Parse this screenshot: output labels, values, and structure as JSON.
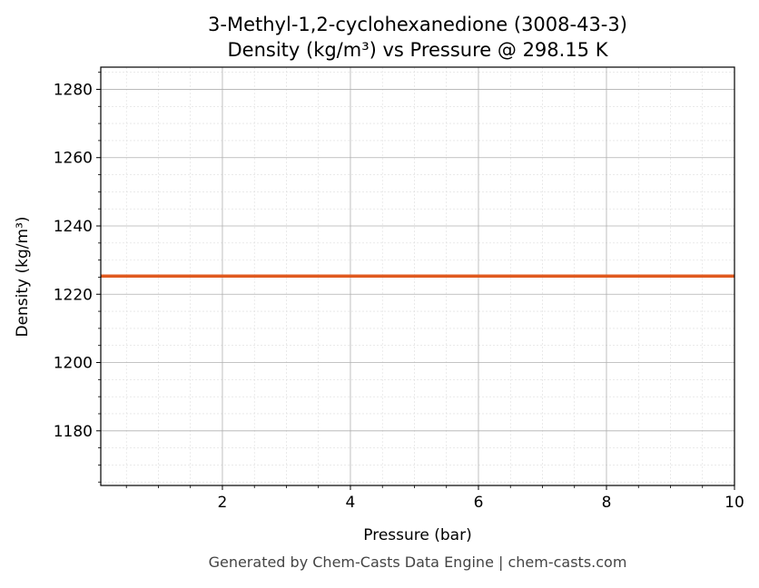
{
  "chart_data": {
    "type": "line",
    "title": "3-Methyl-1,2-cyclohexanedione (3008-43-3)",
    "subtitle": "Density (kg/m³) vs Pressure @ 298.15 K",
    "xlabel": "Pressure (bar)",
    "ylabel": "Density (kg/m³)",
    "xlim": [
      0.1,
      10
    ],
    "ylim": [
      1164,
      1286.5
    ],
    "xticks": [
      2,
      4,
      6,
      8,
      10
    ],
    "yticks": [
      1180,
      1200,
      1220,
      1240,
      1260,
      1280
    ],
    "grid": true,
    "series": [
      {
        "x": [
          0.1,
          10
        ],
        "y": [
          1225.3,
          1225.3
        ],
        "color": "#e05a20"
      }
    ],
    "footer": "Generated by Chem-Casts Data Engine | chem-casts.com"
  }
}
